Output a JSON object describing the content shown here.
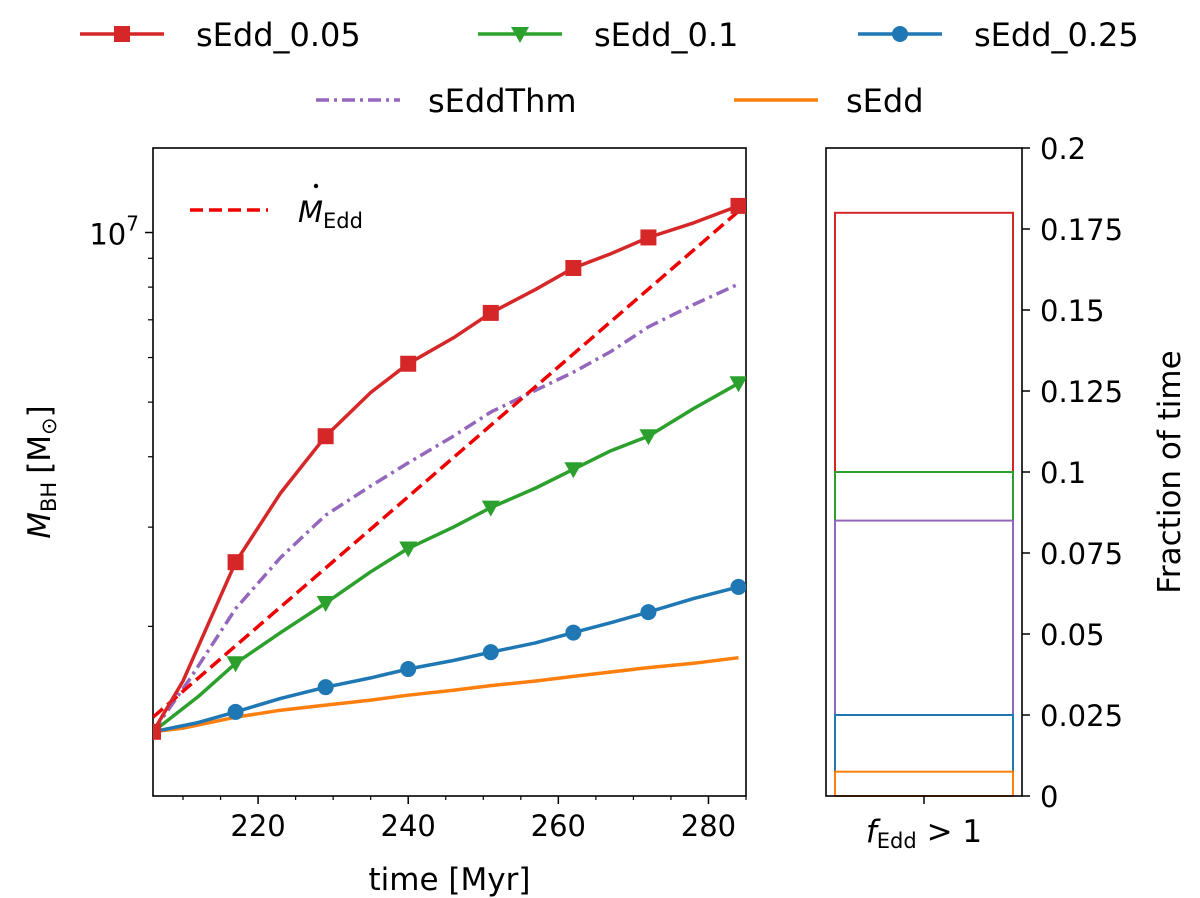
{
  "chart_data": [
    {
      "type": "line",
      "yscale": "log",
      "xlabel": "time [Myr]",
      "ylabel_main": "M",
      "ylabel_sub": "BH",
      "ylabel_unit": "[M",
      "ylabel_unit_sub": "⊙",
      "ylabel_unit_close": "]",
      "xlim": [
        206,
        285
      ],
      "ylim_log10": [
        6.0,
        7.15
      ],
      "xticks": [
        220,
        240,
        260,
        280
      ],
      "xtick_labels": [
        "220",
        "240",
        "260",
        "280"
      ],
      "ytick_major": {
        "value": 7,
        "base": "10",
        "exp": "7"
      },
      "ytick_minor_values": [
        2000000,
        3000000,
        4000000,
        5000000,
        6000000,
        7000000,
        8000000,
        9000000
      ],
      "annotation": {
        "label_main": "M",
        "label_sub": "Edd",
        "color": "#ee0000",
        "dash": "dashed"
      },
      "series": [
        {
          "name": "sEdd_0.05",
          "color": "#d62728",
          "marker": "square",
          "x": [
            206,
            210,
            217,
            223,
            229,
            235,
            240,
            246,
            251,
            257,
            262,
            267,
            272,
            278,
            284
          ],
          "y": [
            1300000,
            1600000,
            2600000,
            3450000,
            4350000,
            5200000,
            5850000,
            6500000,
            7200000,
            7930000,
            8650000,
            9170000,
            9800000,
            10400000,
            11150000
          ],
          "marker_x": [
            206,
            217,
            229,
            240,
            251,
            262,
            272,
            284
          ]
        },
        {
          "name": "sEdd_0.1",
          "color": "#2ca02c",
          "marker": "triangle-down",
          "x": [
            206,
            212,
            217,
            223,
            229,
            235,
            240,
            246,
            251,
            257,
            262,
            267,
            272,
            278,
            284
          ],
          "y": [
            1300000,
            1500000,
            1720000,
            1950000,
            2200000,
            2500000,
            2750000,
            3000000,
            3250000,
            3520000,
            3800000,
            4100000,
            4350000,
            4870000,
            5400000
          ],
          "marker_x": [
            217,
            229,
            240,
            251,
            262,
            272,
            284
          ]
        },
        {
          "name": "sEdd_0.25",
          "color": "#1f77b4",
          "marker": "circle",
          "x": [
            206,
            212,
            217,
            223,
            229,
            235,
            240,
            246,
            251,
            257,
            262,
            267,
            272,
            278,
            284
          ],
          "y": [
            1300000,
            1350000,
            1410000,
            1490000,
            1560000,
            1620000,
            1680000,
            1740000,
            1800000,
            1870000,
            1950000,
            2030000,
            2120000,
            2240000,
            2350000
          ],
          "marker_x": [
            217,
            229,
            240,
            251,
            262,
            272,
            284
          ]
        },
        {
          "name": "sEddThm",
          "color": "#9467bd",
          "marker": "none",
          "dash": "dashdot",
          "x": [
            206,
            211,
            217,
            223,
            229,
            235,
            240,
            246,
            251,
            257,
            262,
            267,
            272,
            278,
            284
          ],
          "y": [
            1300000,
            1620000,
            2150000,
            2650000,
            3150000,
            3550000,
            3900000,
            4350000,
            4800000,
            5250000,
            5650000,
            6150000,
            6800000,
            7450000,
            8100000
          ]
        },
        {
          "name": "sEdd",
          "color": "#ff7f0e",
          "marker": "none",
          "x": [
            206,
            210,
            217,
            223,
            229,
            235,
            240,
            246,
            251,
            257,
            262,
            267,
            272,
            278,
            284
          ],
          "y": [
            1300000,
            1320000,
            1380000,
            1420000,
            1450000,
            1480000,
            1510000,
            1540000,
            1570000,
            1600000,
            1630000,
            1660000,
            1690000,
            1720000,
            1760000
          ]
        },
        {
          "name": "M_Edd",
          "color": "#ee0000",
          "marker": "none",
          "dash": "dashed",
          "x": [
            206,
            285
          ],
          "y": [
            1380000,
            11200000
          ]
        }
      ]
    },
    {
      "type": "bar",
      "ylabel": "Fraction of time",
      "ylim": [
        0,
        0.2
      ],
      "yticks": [
        0,
        0.025,
        0.05,
        0.075,
        0.1,
        0.125,
        0.15,
        0.175,
        0.2
      ],
      "ytick_labels": [
        "0",
        "0.025",
        "0.05",
        "0.075",
        "0.1",
        "0.125",
        "0.15",
        "0.175",
        "0.2"
      ],
      "category_main": "f",
      "category_sub": "Edd",
      "category_rest": " > 1",
      "series": [
        {
          "name": "sEdd_0.05",
          "color": "#d62728",
          "value": 0.18
        },
        {
          "name": "sEdd_0.1",
          "color": "#2ca02c",
          "value": 0.1
        },
        {
          "name": "sEddThm",
          "color": "#9467bd",
          "value": 0.085
        },
        {
          "name": "sEdd_0.25",
          "color": "#1f77b4",
          "value": 0.025
        },
        {
          "name": "sEdd",
          "color": "#ff7f0e",
          "value": 0.0075
        }
      ]
    }
  ],
  "legend": {
    "placement": "top",
    "entries": [
      {
        "label": "sEdd_0.05",
        "color": "#d62728",
        "marker": "square",
        "style": "solid"
      },
      {
        "label": "sEdd_0.1",
        "color": "#2ca02c",
        "marker": "triangle-down",
        "style": "solid"
      },
      {
        "label": "sEdd_0.25",
        "color": "#1f77b4",
        "marker": "circle",
        "style": "solid"
      },
      {
        "label": "sEddThm",
        "color": "#9467bd",
        "marker": "none",
        "style": "dashdot"
      },
      {
        "label": "sEdd",
        "color": "#ff7f0e",
        "marker": "none",
        "style": "solid"
      }
    ]
  }
}
